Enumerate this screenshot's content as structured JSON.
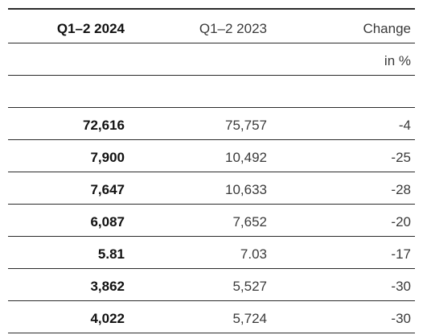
{
  "header": {
    "col1": "Q1–2 2024",
    "col2": "Q1–2 2023",
    "col3": "Change",
    "col3_unit": "in %"
  },
  "rows": [
    {
      "current": "72,616",
      "previous": "75,757",
      "change": "-4"
    },
    {
      "current": "7,900",
      "previous": "10,492",
      "change": "-25"
    },
    {
      "current": "7,647",
      "previous": "10,633",
      "change": "-28"
    },
    {
      "current": "6,087",
      "previous": "7,652",
      "change": "-20"
    },
    {
      "current": "5.81",
      "previous": "7.03",
      "change": "-17"
    },
    {
      "current": "3,862",
      "previous": "5,527",
      "change": "-30"
    },
    {
      "current": "4,022",
      "previous": "5,724",
      "change": "-30"
    }
  ]
}
